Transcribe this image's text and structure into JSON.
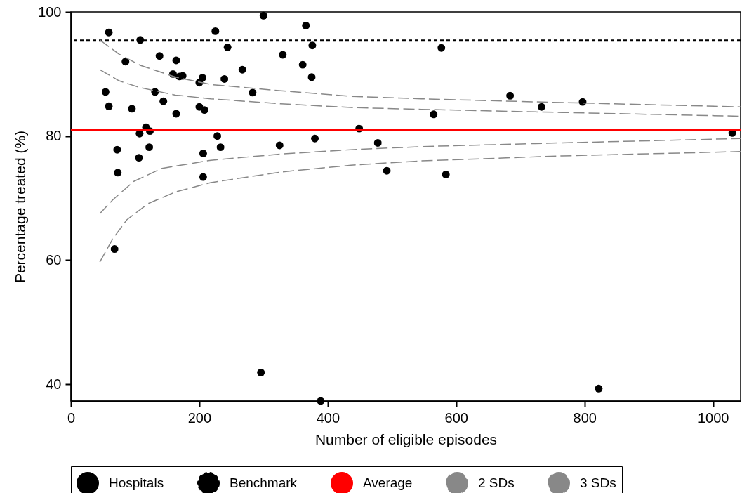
{
  "chart_data": {
    "type": "scatter",
    "xlabel": "Number of eligible episodes",
    "ylabel": "Percentage treated (%)",
    "xlim": [
      0,
      1043
    ],
    "ylim": [
      37.3,
      100
    ],
    "xticks": [
      0,
      200,
      400,
      600,
      800,
      1000
    ],
    "yticks": [
      40,
      60,
      80,
      100
    ],
    "grid": false,
    "legend": "bottom",
    "series": [
      {
        "name": "Hospitals",
        "marker": "circle",
        "color": "#000000",
        "x": [
          54,
          59,
          59,
          68,
          72,
          73,
          85,
          95,
          106,
          107,
          108,
          117,
          122,
          123,
          131,
          138,
          144,
          159,
          164,
          164,
          169,
          174,
          200,
          200,
          205,
          206,
          206,
          208,
          225,
          228,
          233,
          239,
          244,
          267,
          283,
          296,
          300,
          325,
          330,
          361,
          366,
          375,
          376,
          380,
          389,
          449,
          478,
          492,
          565,
          577,
          584,
          684,
          733,
          797,
          822,
          1030
        ],
        "values": [
          87.1,
          96.7,
          84.8,
          61.8,
          77.8,
          74.1,
          92.0,
          84.4,
          76.5,
          80.4,
          95.5,
          81.4,
          78.2,
          80.8,
          87.1,
          92.9,
          85.6,
          90.0,
          92.2,
          83.6,
          89.6,
          89.7,
          88.6,
          84.7,
          89.4,
          77.2,
          73.4,
          84.2,
          96.9,
          80.0,
          78.2,
          89.2,
          94.3,
          90.7,
          87.0,
          41.9,
          99.4,
          78.5,
          93.1,
          91.5,
          97.8,
          89.5,
          94.6,
          79.6,
          37.3,
          81.2,
          78.9,
          74.4,
          83.5,
          94.2,
          73.8,
          86.5,
          84.7,
          85.5,
          39.3,
          80.5
        ]
      },
      {
        "name": "2 SDs",
        "type": "line",
        "color": "#888888",
        "line_style": "dashed",
        "x": [
          45,
          75,
          108,
          163,
          218,
          327,
          436,
          546,
          765,
          1043,
          null,
          45,
          65,
          98,
          142,
          218,
          327,
          436,
          546,
          765,
          1043
        ],
        "values": [
          90.7,
          88.9,
          87.8,
          86.6,
          86.0,
          85.2,
          84.6,
          84.3,
          83.8,
          83.2,
          null,
          67.5,
          69.7,
          72.7,
          74.8,
          76.1,
          77.1,
          77.8,
          78.3,
          78.9,
          79.6
        ]
      },
      {
        "name": "3 SDs",
        "type": "line",
        "color": "#888888",
        "line_style": "dashed",
        "x": [
          45,
          75,
          108,
          163,
          218,
          327,
          436,
          546,
          765,
          1043,
          null,
          45,
          65,
          87,
          120,
          163,
          218,
          327,
          436,
          546,
          765,
          1043
        ],
        "values": [
          95.5,
          93.2,
          91.4,
          89.5,
          88.3,
          87.3,
          86.4,
          86.0,
          85.4,
          84.7,
          null,
          59.7,
          63.4,
          66.5,
          69.1,
          71.0,
          72.5,
          74.2,
          75.3,
          76.0,
          76.8,
          77.5
        ]
      }
    ],
    "ref_lines": [
      {
        "axis": "y",
        "value": 95.4,
        "label": "Benchmark",
        "color": "#000000",
        "line_style": "dotted"
      },
      {
        "axis": "y",
        "value": 81,
        "label": "Average",
        "color": "#ff0000",
        "line_style": "solid"
      }
    ]
  }
}
